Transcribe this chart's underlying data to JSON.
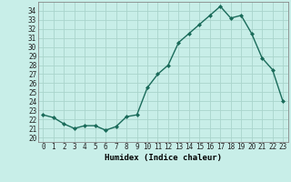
{
  "x": [
    0,
    1,
    2,
    3,
    4,
    5,
    6,
    7,
    8,
    9,
    10,
    11,
    12,
    13,
    14,
    15,
    16,
    17,
    18,
    19,
    20,
    21,
    22,
    23
  ],
  "y": [
    22.5,
    22.2,
    21.5,
    21.0,
    21.3,
    21.3,
    20.8,
    21.2,
    22.3,
    22.5,
    25.5,
    27.0,
    28.0,
    30.5,
    31.5,
    32.5,
    33.5,
    34.5,
    33.2,
    33.5,
    31.5,
    28.8,
    27.5,
    24.0
  ],
  "line_color": "#1a6b5a",
  "marker": "D",
  "marker_size": 2,
  "bg_color": "#c8eee8",
  "grid_color": "#aad4cc",
  "xlabel": "Humidex (Indice chaleur)",
  "xlim": [
    -0.5,
    23.5
  ],
  "ylim": [
    19.5,
    35.0
  ],
  "yticks": [
    20,
    21,
    22,
    23,
    24,
    25,
    26,
    27,
    28,
    29,
    30,
    31,
    32,
    33,
    34
  ],
  "xtick_labels": [
    "0",
    "1",
    "2",
    "3",
    "4",
    "5",
    "6",
    "7",
    "8",
    "9",
    "10",
    "11",
    "12",
    "13",
    "14",
    "15",
    "16",
    "17",
    "18",
    "19",
    "20",
    "21",
    "22",
    "23"
  ],
  "xlabel_fontsize": 6.5,
  "tick_fontsize": 5.5,
  "line_width": 1.0
}
